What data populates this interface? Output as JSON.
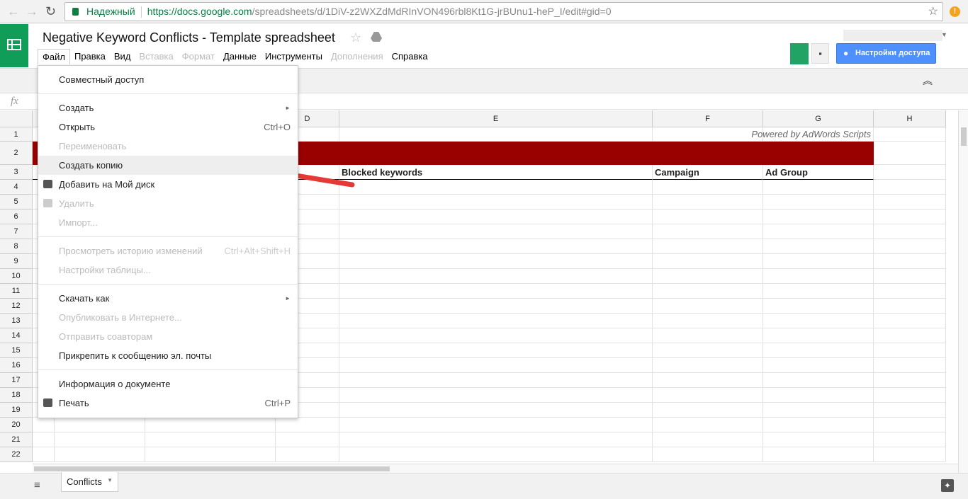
{
  "browser": {
    "secure_label": "Надежный",
    "url_host": "https://docs.google.com",
    "url_path": "/spreadsheets/d/1DiV-z2WXZdMdRInVON496rbl8Kt1G-jrBUnu1-heP_I/edit#gid=0"
  },
  "doc": {
    "title": "Negative Keyword Conflicts - Template spreadsheet"
  },
  "menubar": [
    {
      "label": "Файл",
      "state": "open"
    },
    {
      "label": "Правка"
    },
    {
      "label": "Вид"
    },
    {
      "label": "Вставка",
      "disabled": true
    },
    {
      "label": "Формат",
      "disabled": true
    },
    {
      "label": "Данные"
    },
    {
      "label": "Инструменты"
    },
    {
      "label": "Дополнения",
      "disabled": true
    },
    {
      "label": "Справка"
    }
  ],
  "share_button": "Настройки доступа",
  "formula_icon": "fx",
  "columns": [
    "A",
    "B",
    "C",
    "D",
    "E",
    "F",
    "G",
    "H"
  ],
  "rows": [
    "1",
    "2",
    "3",
    "4",
    "5",
    "6",
    "7",
    "8",
    "9",
    "10",
    "11",
    "12",
    "13",
    "14",
    "15",
    "16",
    "17",
    "18",
    "19",
    "20",
    "21",
    "22"
  ],
  "sheet": {
    "powered_by": "Powered by AdWords Scripts",
    "header_color": "#990000",
    "headers": {
      "D": "l",
      "E": "Blocked keywords",
      "F": "Campaign",
      "G": "Ad Group"
    }
  },
  "file_menu": [
    {
      "label": "Совместный доступ"
    },
    {
      "sep": true
    },
    {
      "label": "Создать",
      "submenu": true
    },
    {
      "label": "Открыть",
      "shortcut": "Ctrl+O"
    },
    {
      "label": "Переименовать",
      "disabled": true
    },
    {
      "label": "Создать копию",
      "highlighted": true
    },
    {
      "label": "Добавить на Мой диск",
      "icon": "drive-icon"
    },
    {
      "label": "Удалить",
      "disabled": true,
      "icon": "trash-icon"
    },
    {
      "label": "Импорт...",
      "disabled": true
    },
    {
      "sep": true
    },
    {
      "label": "Просмотреть историю изменений",
      "shortcut": "Ctrl+Alt+Shift+H",
      "disabled": true
    },
    {
      "label": "Настройки таблицы...",
      "disabled": true
    },
    {
      "sep": true
    },
    {
      "label": "Скачать как",
      "submenu": true
    },
    {
      "label": "Опубликовать в Интернете...",
      "disabled": true
    },
    {
      "label": "Отправить соавторам",
      "disabled": true
    },
    {
      "label": "Прикрепить к сообщению эл. почты"
    },
    {
      "sep": true
    },
    {
      "label": "Информация о документе"
    },
    {
      "label": "Печать",
      "shortcut": "Ctrl+P",
      "icon": "print-icon"
    }
  ],
  "sheet_tabs": [
    {
      "label": "Conflicts"
    }
  ],
  "annotation": {
    "arrow_color": "#e53935"
  }
}
